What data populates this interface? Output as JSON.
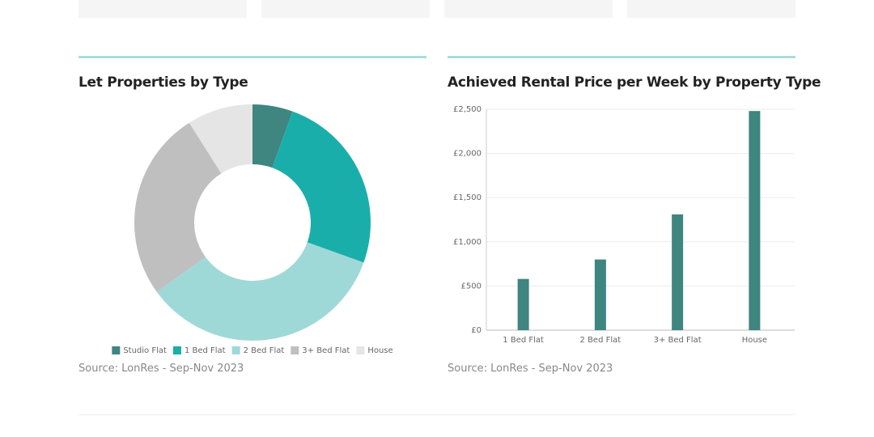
{
  "chart_data": [
    {
      "type": "pie",
      "title": "Let Properties by Type",
      "categories": [
        "Studio Flat",
        "1 Bed Flat",
        "2 Bed Flat",
        "3+ Bed Flat",
        "House"
      ],
      "values": [
        5.5,
        25,
        34.5,
        26,
        9
      ],
      "colors": [
        "#3f8580",
        "#1aaeab",
        "#9ed9d8",
        "#bfbfbf",
        "#e5e5e5"
      ],
      "source": "Source: LonRes - Sep-Nov 2023"
    },
    {
      "type": "bar",
      "title": "Achieved Rental Price per Week by Property Type",
      "categories": [
        "1 Bed Flat",
        "2 Bed Flat",
        "3+ Bed Flat",
        "House"
      ],
      "values": [
        580,
        800,
        1310,
        2480
      ],
      "color": "#3f8580",
      "ylim": [
        0,
        2500
      ],
      "yticks": [
        {
          "value": 0,
          "label": "£0"
        },
        {
          "value": 500,
          "label": "£500"
        },
        {
          "value": 1000,
          "label": "£1,000"
        },
        {
          "value": 1500,
          "label": "£1,500"
        },
        {
          "value": 2000,
          "label": "£2,000"
        },
        {
          "value": 2500,
          "label": "£2,500"
        }
      ],
      "grid": true,
      "source": "Source: LonRes - Sep-Nov 2023"
    }
  ]
}
